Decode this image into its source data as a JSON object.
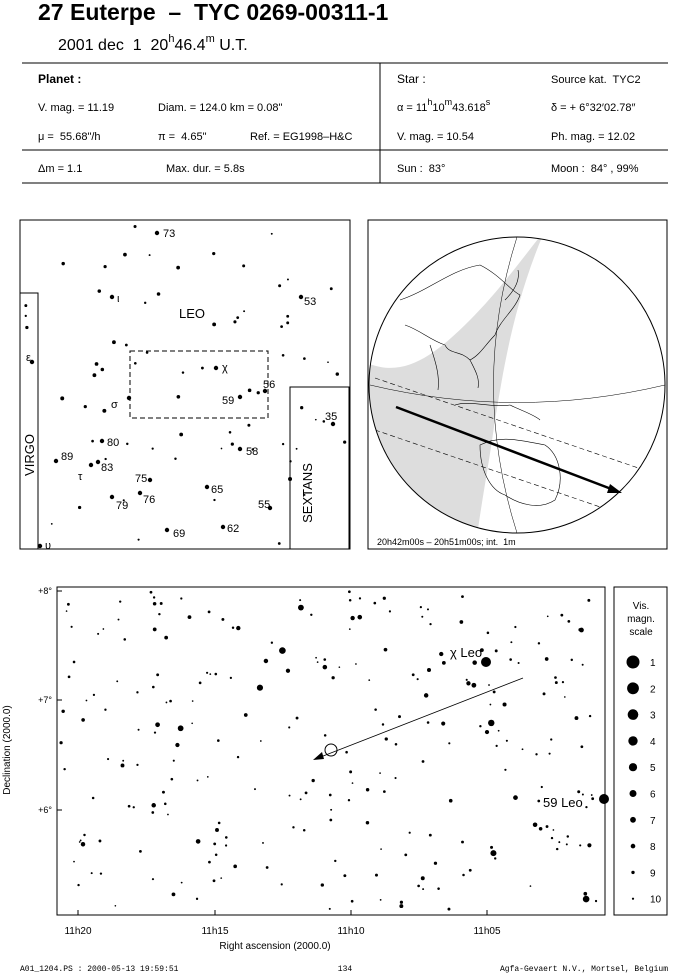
{
  "header": {
    "title": "27 Euterpe  –  TYC 0269-00311-1",
    "date": "2001 dec  1  20",
    "date_h": "h",
    "date_min": "46.4",
    "date_m": "m",
    "date_ut": " U.T."
  },
  "planet": {
    "label": "Planet :",
    "vmag": "V. mag. = 11.19",
    "diam": "Diam. = 124.0 km = 0.08\"",
    "mu": "μ =  55.68\"/h",
    "pi": "π =  4.65\"",
    "ref": "Ref. = EG1998–H&C",
    "dm": "Δm = 1.1",
    "maxdur": "Max. dur. = 5.8s"
  },
  "star": {
    "label": "Star :",
    "source": "Source kat.  TYC2",
    "alpha": "α = 11",
    "alpha_h": "h",
    "alpha_min": "10",
    "alpha_m": "m",
    "alpha_sec": "43.618",
    "alpha_s": "s",
    "delta": "δ = + 6°32′02.78″",
    "vmag": "V. mag. = 10.54",
    "phmag": "Ph. mag. = 12.02",
    "sun": "Sun :  83°",
    "moon": "Moon :  84° , 99%"
  },
  "finder": {
    "constellations": [
      "LEO",
      "VIRGO",
      "SEXTANS"
    ],
    "stars": [
      "73",
      "ι",
      "53",
      "χ",
      "56",
      "σ",
      "59",
      "35",
      "80",
      "89",
      "58",
      "τ",
      "83",
      "75",
      "65",
      "76",
      "79",
      "55",
      "69",
      "62",
      "ε",
      "υ"
    ]
  },
  "globe": {
    "caption": "20h42m00s – 20h51m00s; int.  1m"
  },
  "field": {
    "yticks": [
      "+8°",
      "+7°",
      "+6°"
    ],
    "xticks": [
      "11h20",
      "11h15",
      "11h10",
      "11h05"
    ],
    "xlabel": "Right ascension (2000.0)",
    "ylabel": "Declination (2000.0)",
    "star_labels": [
      "χ Leo",
      "59 Leo"
    ],
    "scale_title": [
      "Vis.",
      "magn.",
      "scale"
    ],
    "scale": [
      1,
      2,
      3,
      4,
      5,
      6,
      7,
      8,
      9,
      10
    ]
  },
  "footer": {
    "file": "A01_1204.PS : 2000-05-13 19:59:51",
    "page": "134",
    "company": "Agfa-Gevaert N.V., Mortsel, Belgium"
  }
}
